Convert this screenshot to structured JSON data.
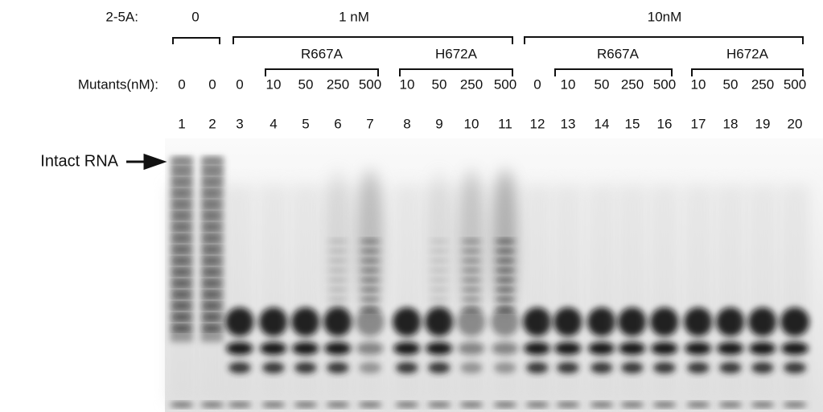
{
  "header": {
    "label": "2-5A:",
    "groups": [
      "0",
      "1 nM",
      "10nM"
    ]
  },
  "mutant_groups": [
    "R667A",
    "H672A",
    "R667A",
    "H672A"
  ],
  "concentrations": {
    "label": "Mutants(nM):",
    "values": [
      0,
      0,
      0,
      10,
      50,
      250,
      500,
      10,
      50,
      250,
      500,
      0,
      10,
      50,
      250,
      500,
      10,
      50,
      250,
      500
    ]
  },
  "lanes": [
    1,
    2,
    3,
    4,
    5,
    6,
    7,
    8,
    9,
    10,
    11,
    12,
    13,
    14,
    15,
    16,
    17,
    18,
    19,
    20
  ],
  "marker": "Intact RNA"
}
